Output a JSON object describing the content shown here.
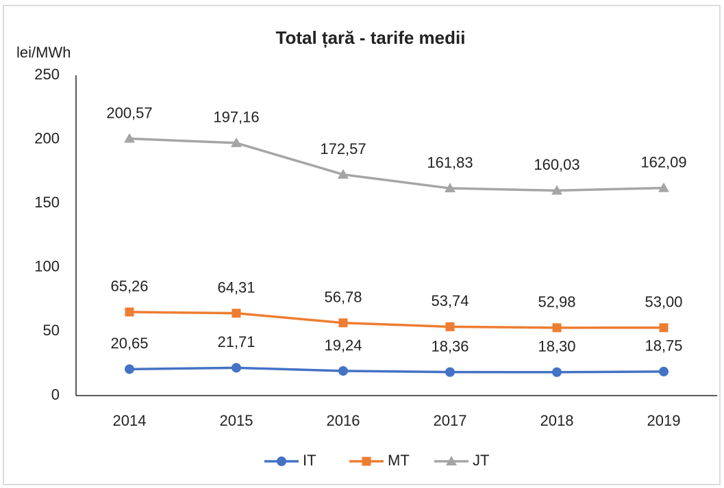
{
  "chart_data": {
    "type": "line",
    "title": "Total țară - tarife medii",
    "y_label": "lei/MWh",
    "categories": [
      "2014",
      "2015",
      "2016",
      "2017",
      "2018",
      "2019"
    ],
    "series": [
      {
        "name": "IT",
        "color": "#4472c4",
        "marker": "circle",
        "values": [
          20.65,
          21.71,
          19.24,
          18.36,
          18.3,
          18.75
        ],
        "value_labels": [
          "20,65",
          "21,71",
          "19,24",
          "18,36",
          "18,30",
          "18,75"
        ]
      },
      {
        "name": "MT",
        "color": "#ed7d31",
        "marker": "square",
        "values": [
          65.26,
          64.31,
          56.78,
          53.74,
          52.98,
          53.0
        ],
        "value_labels": [
          "65,26",
          "64,31",
          "56,78",
          "53,74",
          "52,98",
          "53,00"
        ]
      },
      {
        "name": "JT",
        "color": "#a5a5a5",
        "marker": "triangle",
        "values": [
          200.57,
          197.16,
          172.57,
          161.83,
          160.03,
          162.09
        ],
        "value_labels": [
          "200,57",
          "197,16",
          "172,57",
          "161,83",
          "160,03",
          "162,09"
        ]
      }
    ],
    "ylim": [
      0,
      250
    ],
    "yticks": [
      0,
      50,
      100,
      150,
      200,
      250
    ],
    "grid": false,
    "legend": "bottom"
  }
}
